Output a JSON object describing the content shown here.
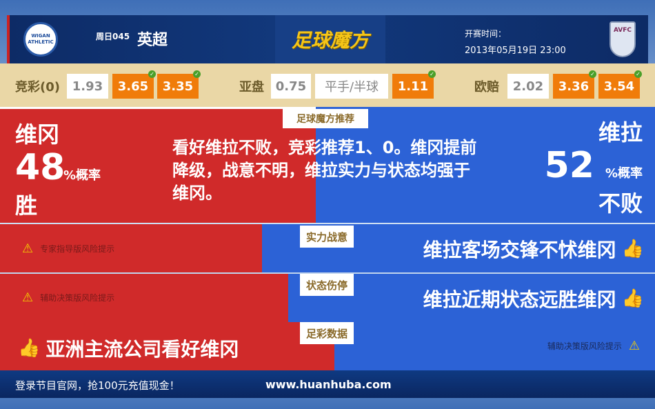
{
  "header": {
    "home_badge": "WIGAN ATHLETIC",
    "away_badge": "AVFC",
    "match_no": "周日045",
    "league": "英超",
    "logo": "足球魔方",
    "kickoff_label": "开赛时间：",
    "kickoff_time": "2013年05月19日 23:00"
  },
  "odds": {
    "jingcai": {
      "label": "竞彩(0)",
      "values": [
        "1.93",
        "3.65",
        "3.35"
      ]
    },
    "asian": {
      "label": "亚盘",
      "values": [
        "0.75",
        "平手/半球",
        "1.11"
      ]
    },
    "euro": {
      "label": "欧赔",
      "values": [
        "2.02",
        "3.36",
        "3.54"
      ]
    }
  },
  "recommend": {
    "tag": "足球魔方推荐",
    "home_team": "维冈",
    "home_pct": "48",
    "home_pct_unit": "%概率",
    "home_result": "胜",
    "away_team": "维拉",
    "away_pct": "52",
    "away_pct_unit": "%概率",
    "away_result": "不败",
    "text": "看好维拉不败，竞彩推荐1、0。维冈提前降级，战意不明，维拉实力与状态均强于维冈。"
  },
  "rows": [
    {
      "tag": "实力战意",
      "left_warning": "专家指导版风险提示",
      "right_text": "维拉客场交锋不怵维冈"
    },
    {
      "tag": "状态伤停",
      "left_warning": "辅助决策版风险提示",
      "right_text": "维拉近期状态远胜维冈"
    },
    {
      "tag": "足彩数据",
      "left_text": "亚洲主流公司看好维冈",
      "right_warning": "辅助决策版风险提示"
    }
  ],
  "footer": {
    "promo": "登录节目官网，抢100元充值现金！",
    "url": "www.huanhuba.com"
  },
  "colors": {
    "home": "#d02a2a",
    "away": "#2c62d6",
    "highlight": "#f07c0a"
  }
}
